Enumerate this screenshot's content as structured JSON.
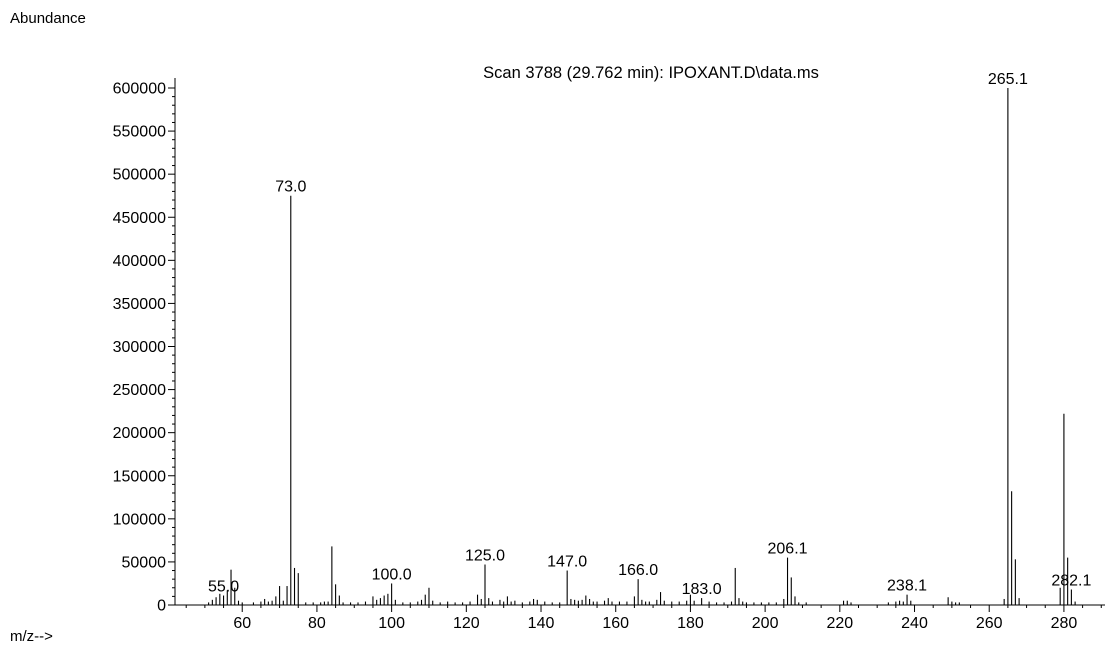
{
  "chart_data": {
    "type": "bar",
    "title": "Scan 3788 (29.762 min): IPOXANT.D\\data.ms",
    "ylabel": "Abundance",
    "xlabel": "m/z-->",
    "xlim": [
      42,
      291
    ],
    "ylim": [
      0,
      600000
    ],
    "x_ticks": [
      60,
      80,
      100,
      120,
      140,
      160,
      180,
      200,
      220,
      240,
      260,
      280
    ],
    "y_ticks": [
      0,
      50000,
      100000,
      150000,
      200000,
      250000,
      300000,
      350000,
      400000,
      450000,
      500000,
      550000,
      600000
    ],
    "peaks": [
      {
        "x": 51,
        "y": 3000
      },
      {
        "x": 52,
        "y": 6000
      },
      {
        "x": 53,
        "y": 9000
      },
      {
        "x": 54,
        "y": 13000
      },
      {
        "x": 55,
        "y": 11000,
        "label": "55.0"
      },
      {
        "x": 56,
        "y": 17000
      },
      {
        "x": 57,
        "y": 41000
      },
      {
        "x": 58,
        "y": 20000
      },
      {
        "x": 59,
        "y": 5000
      },
      {
        "x": 60,
        "y": 3000
      },
      {
        "x": 63,
        "y": 3000
      },
      {
        "x": 65,
        "y": 4000
      },
      {
        "x": 66,
        "y": 7000
      },
      {
        "x": 67,
        "y": 4000
      },
      {
        "x": 68,
        "y": 5000
      },
      {
        "x": 69,
        "y": 10000
      },
      {
        "x": 70,
        "y": 22000
      },
      {
        "x": 71,
        "y": 5000
      },
      {
        "x": 72,
        "y": 22000
      },
      {
        "x": 73,
        "y": 475000,
        "label": "73.0"
      },
      {
        "x": 74,
        "y": 43000
      },
      {
        "x": 75,
        "y": 37000
      },
      {
        "x": 77,
        "y": 3000
      },
      {
        "x": 79,
        "y": 3000
      },
      {
        "x": 81,
        "y": 3000
      },
      {
        "x": 82,
        "y": 4000
      },
      {
        "x": 83,
        "y": 4000
      },
      {
        "x": 84,
        "y": 68000
      },
      {
        "x": 85,
        "y": 24000
      },
      {
        "x": 86,
        "y": 11000
      },
      {
        "x": 87,
        "y": 3000
      },
      {
        "x": 89,
        "y": 3000
      },
      {
        "x": 91,
        "y": 3000
      },
      {
        "x": 93,
        "y": 4000
      },
      {
        "x": 95,
        "y": 10000
      },
      {
        "x": 96,
        "y": 6000
      },
      {
        "x": 97,
        "y": 8000
      },
      {
        "x": 98,
        "y": 11000
      },
      {
        "x": 99,
        "y": 13000
      },
      {
        "x": 100,
        "y": 25000,
        "label": "100.0"
      },
      {
        "x": 101,
        "y": 6000
      },
      {
        "x": 103,
        "y": 3000
      },
      {
        "x": 105,
        "y": 3000
      },
      {
        "x": 107,
        "y": 4000
      },
      {
        "x": 108,
        "y": 6000
      },
      {
        "x": 109,
        "y": 12000
      },
      {
        "x": 110,
        "y": 20000
      },
      {
        "x": 111,
        "y": 5000
      },
      {
        "x": 113,
        "y": 3000
      },
      {
        "x": 115,
        "y": 4000
      },
      {
        "x": 117,
        "y": 3000
      },
      {
        "x": 119,
        "y": 3000
      },
      {
        "x": 121,
        "y": 4000
      },
      {
        "x": 123,
        "y": 12000
      },
      {
        "x": 124,
        "y": 7000
      },
      {
        "x": 125,
        "y": 47000,
        "label": "125.0"
      },
      {
        "x": 126,
        "y": 8000
      },
      {
        "x": 127,
        "y": 4000
      },
      {
        "x": 129,
        "y": 6000
      },
      {
        "x": 130,
        "y": 4000
      },
      {
        "x": 131,
        "y": 10000
      },
      {
        "x": 132,
        "y": 4000
      },
      {
        "x": 133,
        "y": 5000
      },
      {
        "x": 135,
        "y": 3000
      },
      {
        "x": 137,
        "y": 4000
      },
      {
        "x": 138,
        "y": 7000
      },
      {
        "x": 139,
        "y": 6000
      },
      {
        "x": 141,
        "y": 4000
      },
      {
        "x": 143,
        "y": 3000
      },
      {
        "x": 145,
        "y": 3000
      },
      {
        "x": 147,
        "y": 40000,
        "label": "147.0"
      },
      {
        "x": 148,
        "y": 7000
      },
      {
        "x": 149,
        "y": 6000
      },
      {
        "x": 150,
        "y": 5000
      },
      {
        "x": 151,
        "y": 6000
      },
      {
        "x": 152,
        "y": 11000
      },
      {
        "x": 153,
        "y": 7000
      },
      {
        "x": 154,
        "y": 4000
      },
      {
        "x": 155,
        "y": 4000
      },
      {
        "x": 157,
        "y": 5000
      },
      {
        "x": 158,
        "y": 8000
      },
      {
        "x": 159,
        "y": 4000
      },
      {
        "x": 161,
        "y": 4000
      },
      {
        "x": 163,
        "y": 4000
      },
      {
        "x": 165,
        "y": 10000
      },
      {
        "x": 166,
        "y": 30000,
        "label": "166.0"
      },
      {
        "x": 167,
        "y": 6000
      },
      {
        "x": 168,
        "y": 4000
      },
      {
        "x": 169,
        "y": 4000
      },
      {
        "x": 171,
        "y": 6000
      },
      {
        "x": 172,
        "y": 15000
      },
      {
        "x": 173,
        "y": 5000
      },
      {
        "x": 175,
        "y": 4000
      },
      {
        "x": 177,
        "y": 4000
      },
      {
        "x": 179,
        "y": 5000
      },
      {
        "x": 180,
        "y": 12000
      },
      {
        "x": 181,
        "y": 5000
      },
      {
        "x": 183,
        "y": 8000,
        "label": "183.0"
      },
      {
        "x": 185,
        "y": 4000
      },
      {
        "x": 187,
        "y": 3000
      },
      {
        "x": 189,
        "y": 3000
      },
      {
        "x": 191,
        "y": 4000
      },
      {
        "x": 192,
        "y": 43000
      },
      {
        "x": 193,
        "y": 8000
      },
      {
        "x": 194,
        "y": 4000
      },
      {
        "x": 195,
        "y": 3000
      },
      {
        "x": 197,
        "y": 3000
      },
      {
        "x": 199,
        "y": 3000
      },
      {
        "x": 201,
        "y": 3000
      },
      {
        "x": 203,
        "y": 3000
      },
      {
        "x": 205,
        "y": 7000
      },
      {
        "x": 206,
        "y": 55000,
        "label": "206.1"
      },
      {
        "x": 207,
        "y": 32000
      },
      {
        "x": 208,
        "y": 10000
      },
      {
        "x": 209,
        "y": 3000
      },
      {
        "x": 211,
        "y": 3000
      },
      {
        "x": 221,
        "y": 5000
      },
      {
        "x": 222,
        "y": 5000
      },
      {
        "x": 223,
        "y": 3000
      },
      {
        "x": 233,
        "y": 3000
      },
      {
        "x": 235,
        "y": 4000
      },
      {
        "x": 236,
        "y": 5000
      },
      {
        "x": 237,
        "y": 4000
      },
      {
        "x": 238,
        "y": 12000,
        "label": "238.1"
      },
      {
        "x": 239,
        "y": 5000
      },
      {
        "x": 249,
        "y": 9000
      },
      {
        "x": 250,
        "y": 4000
      },
      {
        "x": 251,
        "y": 3000
      },
      {
        "x": 252,
        "y": 3000
      },
      {
        "x": 264,
        "y": 7000
      },
      {
        "x": 265,
        "y": 600000,
        "label": "265.1"
      },
      {
        "x": 266,
        "y": 132000
      },
      {
        "x": 267,
        "y": 53000
      },
      {
        "x": 268,
        "y": 8000
      },
      {
        "x": 279,
        "y": 20000
      },
      {
        "x": 280,
        "y": 222000
      },
      {
        "x": 281,
        "y": 55000
      },
      {
        "x": 282,
        "y": 18000,
        "label": "282.1"
      },
      {
        "x": 283,
        "y": 4000
      }
    ]
  }
}
